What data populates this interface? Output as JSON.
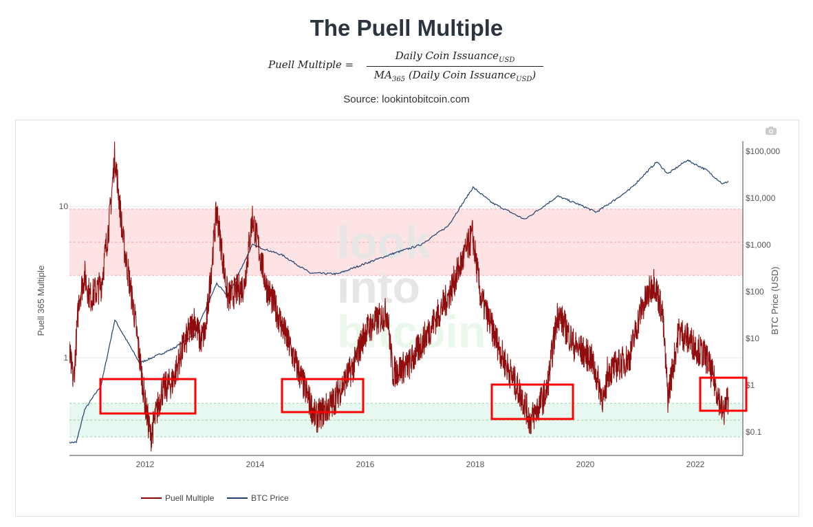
{
  "title": "The Puell Multiple",
  "formula": {
    "lhs": "Puell Multiple  =",
    "num": "Daily Coin Issuance",
    "num_sub": "USD",
    "den_ma": "MA",
    "den_ma_sub": "365",
    "den": " (Daily Coin Issuance",
    "den_sub": "USD",
    "den_close": ")"
  },
  "source": "Source: lookintobitcoin.com",
  "watermark": [
    "look",
    "into",
    "bitcoin"
  ],
  "chart_data": {
    "type": "line",
    "title": "The Puell Multiple",
    "ylabel": "Puell 365 Multiple",
    "y2label": "BTC Price (USD)",
    "x_ticks": [
      "2012",
      "2014",
      "2016",
      "2018",
      "2020",
      "2022"
    ],
    "y_ticks": [
      "10",
      "1"
    ],
    "y2_ticks": [
      "$100,000",
      "$10,000",
      "$1,000",
      "$100",
      "$10",
      "$1",
      "$0.1"
    ],
    "xlim": [
      2010.6,
      2022.85
    ],
    "ylim_log": [
      0.22,
      30
    ],
    "bands": [
      {
        "name": "overvalued",
        "from": 3.5,
        "to": 9.6,
        "color": "#fde3e3"
      },
      {
        "name": "undervalued",
        "from": 0.3,
        "to": 0.5,
        "color": "#e6f8ef"
      }
    ],
    "legend": "bottom-left",
    "series": [
      {
        "name": "Puell Multiple",
        "color": "#8b0000",
        "x": [
          2010.6,
          2010.7,
          2010.8,
          2010.9,
          2011.0,
          2011.2,
          2011.35,
          2011.45,
          2011.6,
          2011.8,
          2012.0,
          2012.1,
          2012.3,
          2012.5,
          2012.7,
          2012.9,
          2013.0,
          2013.1,
          2013.3,
          2013.5,
          2013.8,
          2013.95,
          2014.2,
          2014.4,
          2014.7,
          2015.0,
          2015.1,
          2015.4,
          2015.8,
          2016.0,
          2016.4,
          2016.5,
          2016.8,
          2017.0,
          2017.5,
          2017.95,
          2018.1,
          2018.5,
          2018.9,
          2019.0,
          2019.3,
          2019.5,
          2019.8,
          2020.1,
          2020.35,
          2020.4,
          2020.8,
          2021.0,
          2021.25,
          2021.4,
          2021.5,
          2021.7,
          2021.9,
          2022.2,
          2022.4,
          2022.5,
          2022.6
        ],
        "values": [
          1.2,
          0.7,
          2.5,
          3.5,
          2.5,
          3,
          8,
          22,
          6,
          2,
          0.5,
          0.3,
          0.6,
          0.7,
          1.2,
          1.8,
          1.3,
          1.5,
          9.5,
          2.5,
          3,
          8.5,
          3,
          2,
          1.0,
          0.5,
          0.4,
          0.5,
          0.9,
          1.5,
          2.0,
          0.8,
          0.9,
          1.2,
          2.5,
          6.5,
          2.5,
          1,
          0.5,
          0.38,
          0.6,
          2.0,
          1.2,
          1.0,
          0.5,
          0.8,
          1.0,
          2,
          3.2,
          2,
          0.55,
          1.5,
          1.3,
          1.0,
          0.6,
          0.42,
          0.55
        ]
      },
      {
        "name": "BTC Price",
        "color": "#1f3f6e",
        "x": [
          2010.6,
          2010.75,
          2010.9,
          2011.2,
          2011.45,
          2011.9,
          2012.5,
          2012.9,
          2013.3,
          2013.5,
          2013.95,
          2014.5,
          2015.0,
          2015.5,
          2016.0,
          2016.5,
          2017.0,
          2017.5,
          2017.96,
          2018.3,
          2018.9,
          2019.5,
          2019.9,
          2020.2,
          2020.8,
          2021.3,
          2021.5,
          2021.85,
          2022.2,
          2022.5,
          2022.6
        ],
        "values": [
          0.06,
          0.06,
          0.3,
          1,
          25,
          3,
          6,
          12,
          150,
          80,
          1000,
          600,
          250,
          240,
          400,
          650,
          1000,
          2500,
          17000,
          8000,
          3500,
          11000,
          7200,
          5000,
          15000,
          60000,
          33000,
          65000,
          40000,
          20000,
          23000
        ]
      }
    ]
  }
}
